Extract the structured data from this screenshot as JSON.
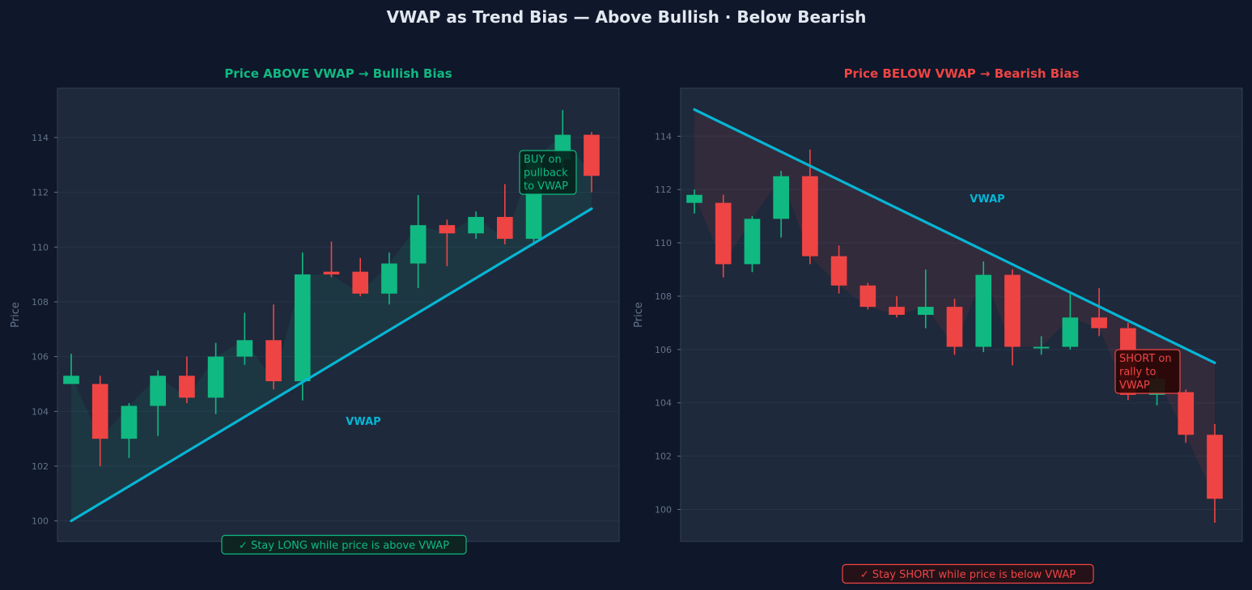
{
  "figure": {
    "title": "VWAP as Trend Bias — Above Bullish · Below Bearish"
  },
  "colors": {
    "page_bg": "#0f172a",
    "panel_bg": "#1e293b",
    "grid": "#27344a",
    "bull": "#10b981",
    "bear": "#ef4444",
    "vwap": "#06b6d4",
    "tick_text": "#64748b"
  },
  "chart_data": [
    {
      "type": "candlestick",
      "title": "Price ABOVE VWAP  →  Bullish Bias",
      "ylabel": "Price",
      "xlabel": "",
      "ylim": [
        99.25,
        115.8
      ],
      "yticks": [
        "100",
        "102",
        "104",
        "106",
        "108",
        "110",
        "112",
        "114"
      ],
      "grid": true,
      "vwap_label": "VWAP",
      "vwap": {
        "start": 100.0,
        "end": 111.4
      },
      "candles": [
        {
          "open": 105.0,
          "high": 106.1,
          "low": 105.0,
          "close": 105.3
        },
        {
          "open": 105.0,
          "high": 105.3,
          "low": 102.0,
          "close": 103.0
        },
        {
          "open": 103.0,
          "high": 104.3,
          "low": 102.3,
          "close": 104.2
        },
        {
          "open": 104.2,
          "high": 105.5,
          "low": 103.1,
          "close": 105.3
        },
        {
          "open": 105.3,
          "high": 106.0,
          "low": 104.3,
          "close": 104.5
        },
        {
          "open": 104.5,
          "high": 106.5,
          "low": 103.9,
          "close": 106.0
        },
        {
          "open": 106.0,
          "high": 107.6,
          "low": 105.7,
          "close": 106.6
        },
        {
          "open": 106.6,
          "high": 107.9,
          "low": 104.8,
          "close": 105.1
        },
        {
          "open": 105.1,
          "high": 109.8,
          "low": 104.4,
          "close": 109.0
        },
        {
          "open": 109.1,
          "high": 110.2,
          "low": 108.9,
          "close": 109.0
        },
        {
          "open": 109.1,
          "high": 109.6,
          "low": 108.2,
          "close": 108.3
        },
        {
          "open": 108.3,
          "high": 109.8,
          "low": 107.9,
          "close": 109.4
        },
        {
          "open": 109.4,
          "high": 111.9,
          "low": 108.5,
          "close": 110.8
        },
        {
          "open": 110.8,
          "high": 111.0,
          "low": 109.3,
          "close": 110.5
        },
        {
          "open": 110.5,
          "high": 111.3,
          "low": 110.3,
          "close": 111.1
        },
        {
          "open": 111.1,
          "high": 112.3,
          "low": 110.1,
          "close": 110.3
        },
        {
          "open": 110.3,
          "high": 113.3,
          "low": 110.1,
          "close": 113.2
        },
        {
          "open": 113.2,
          "high": 115.0,
          "low": 112.9,
          "close": 114.1
        },
        {
          "open": 114.1,
          "high": 114.2,
          "low": 112.0,
          "close": 112.6
        }
      ],
      "annotation": "BUY on\npullback\nto VWAP",
      "bottom_note": "✓  Stay LONG while price is above VWAP"
    },
    {
      "type": "candlestick",
      "title": "Price BELOW VWAP  →  Bearish Bias",
      "ylabel": "Price",
      "xlabel": "",
      "ylim": [
        98.8,
        115.8
      ],
      "yticks": [
        "100",
        "102",
        "104",
        "106",
        "108",
        "110",
        "112",
        "114"
      ],
      "grid": true,
      "vwap_label": "VWAP",
      "vwap": {
        "start": 115.0,
        "end": 105.5
      },
      "candles": [
        {
          "open": 111.5,
          "high": 112.0,
          "low": 111.1,
          "close": 111.8
        },
        {
          "open": 111.5,
          "high": 111.8,
          "low": 108.7,
          "close": 109.2
        },
        {
          "open": 109.2,
          "high": 111.0,
          "low": 108.9,
          "close": 110.9
        },
        {
          "open": 110.9,
          "high": 112.7,
          "low": 110.2,
          "close": 112.5
        },
        {
          "open": 112.5,
          "high": 113.5,
          "low": 109.2,
          "close": 109.5
        },
        {
          "open": 109.5,
          "high": 109.9,
          "low": 108.1,
          "close": 108.4
        },
        {
          "open": 108.4,
          "high": 108.5,
          "low": 107.5,
          "close": 107.6
        },
        {
          "open": 107.6,
          "high": 108.0,
          "low": 107.2,
          "close": 107.3
        },
        {
          "open": 107.3,
          "high": 109.0,
          "low": 106.8,
          "close": 107.6
        },
        {
          "open": 107.6,
          "high": 107.9,
          "low": 105.8,
          "close": 106.1
        },
        {
          "open": 106.1,
          "high": 109.3,
          "low": 105.9,
          "close": 108.8
        },
        {
          "open": 108.8,
          "high": 109.0,
          "low": 105.4,
          "close": 106.1
        },
        {
          "open": 106.1,
          "high": 106.5,
          "low": 105.8,
          "close": 106.1
        },
        {
          "open": 106.1,
          "high": 108.1,
          "low": 106.0,
          "close": 107.2
        },
        {
          "open": 107.2,
          "high": 108.3,
          "low": 106.5,
          "close": 106.8
        },
        {
          "open": 106.8,
          "high": 107.0,
          "low": 104.1,
          "close": 104.3
        },
        {
          "open": 104.3,
          "high": 105.2,
          "low": 103.9,
          "close": 104.9
        },
        {
          "open": 104.4,
          "high": 104.5,
          "low": 102.5,
          "close": 102.8
        },
        {
          "open": 102.8,
          "high": 103.2,
          "low": 99.5,
          "close": 100.4
        }
      ],
      "annotation": "SHORT on\nrally to\nVWAP",
      "bottom_note": "✓  Stay SHORT while price is below VWAP"
    }
  ]
}
